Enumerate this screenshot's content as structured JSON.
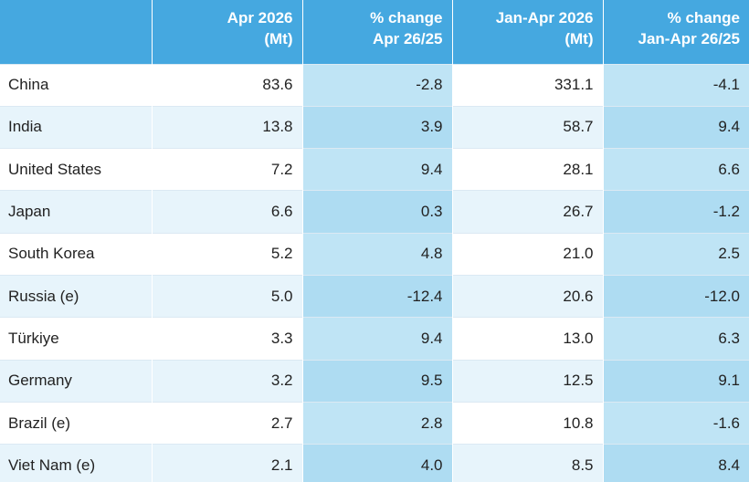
{
  "header": {
    "col1": [
      "Apr 2026",
      "(Mt)"
    ],
    "col2": [
      "% change",
      "Apr 26/25"
    ],
    "col3": [
      "Jan-Apr 2026",
      "(Mt)"
    ],
    "col4": [
      "% change",
      "Jan-Apr 26/25"
    ]
  },
  "rows": [
    {
      "country": "China",
      "apr": "83.6",
      "apr_change": "-2.8",
      "ytd": "331.1",
      "ytd_change": "-4.1"
    },
    {
      "country": "India",
      "apr": "13.8",
      "apr_change": "3.9",
      "ytd": "58.7",
      "ytd_change": "9.4"
    },
    {
      "country": "United States",
      "apr": "7.2",
      "apr_change": "9.4",
      "ytd": "28.1",
      "ytd_change": "6.6"
    },
    {
      "country": "Japan",
      "apr": "6.6",
      "apr_change": "0.3",
      "ytd": "26.7",
      "ytd_change": "-1.2"
    },
    {
      "country": "South Korea",
      "apr": "5.2",
      "apr_change": "4.8",
      "ytd": "21.0",
      "ytd_change": "2.5"
    },
    {
      "country": "Russia (e)",
      "apr": "5.0",
      "apr_change": "-12.4",
      "ytd": "20.6",
      "ytd_change": "-12.0"
    },
    {
      "country": "Türkiye",
      "apr": "3.3",
      "apr_change": "9.4",
      "ytd": "13.0",
      "ytd_change": "6.3"
    },
    {
      "country": "Germany",
      "apr": "3.2",
      "apr_change": "9.5",
      "ytd": "12.5",
      "ytd_change": "9.1"
    },
    {
      "country": "Brazil (e)",
      "apr": "2.7",
      "apr_change": "2.8",
      "ytd": "10.8",
      "ytd_change": "-1.6"
    },
    {
      "country": "Viet Nam (e)",
      "apr": "2.1",
      "apr_change": "4.0",
      "ytd": "8.5",
      "ytd_change": "8.4"
    }
  ]
}
